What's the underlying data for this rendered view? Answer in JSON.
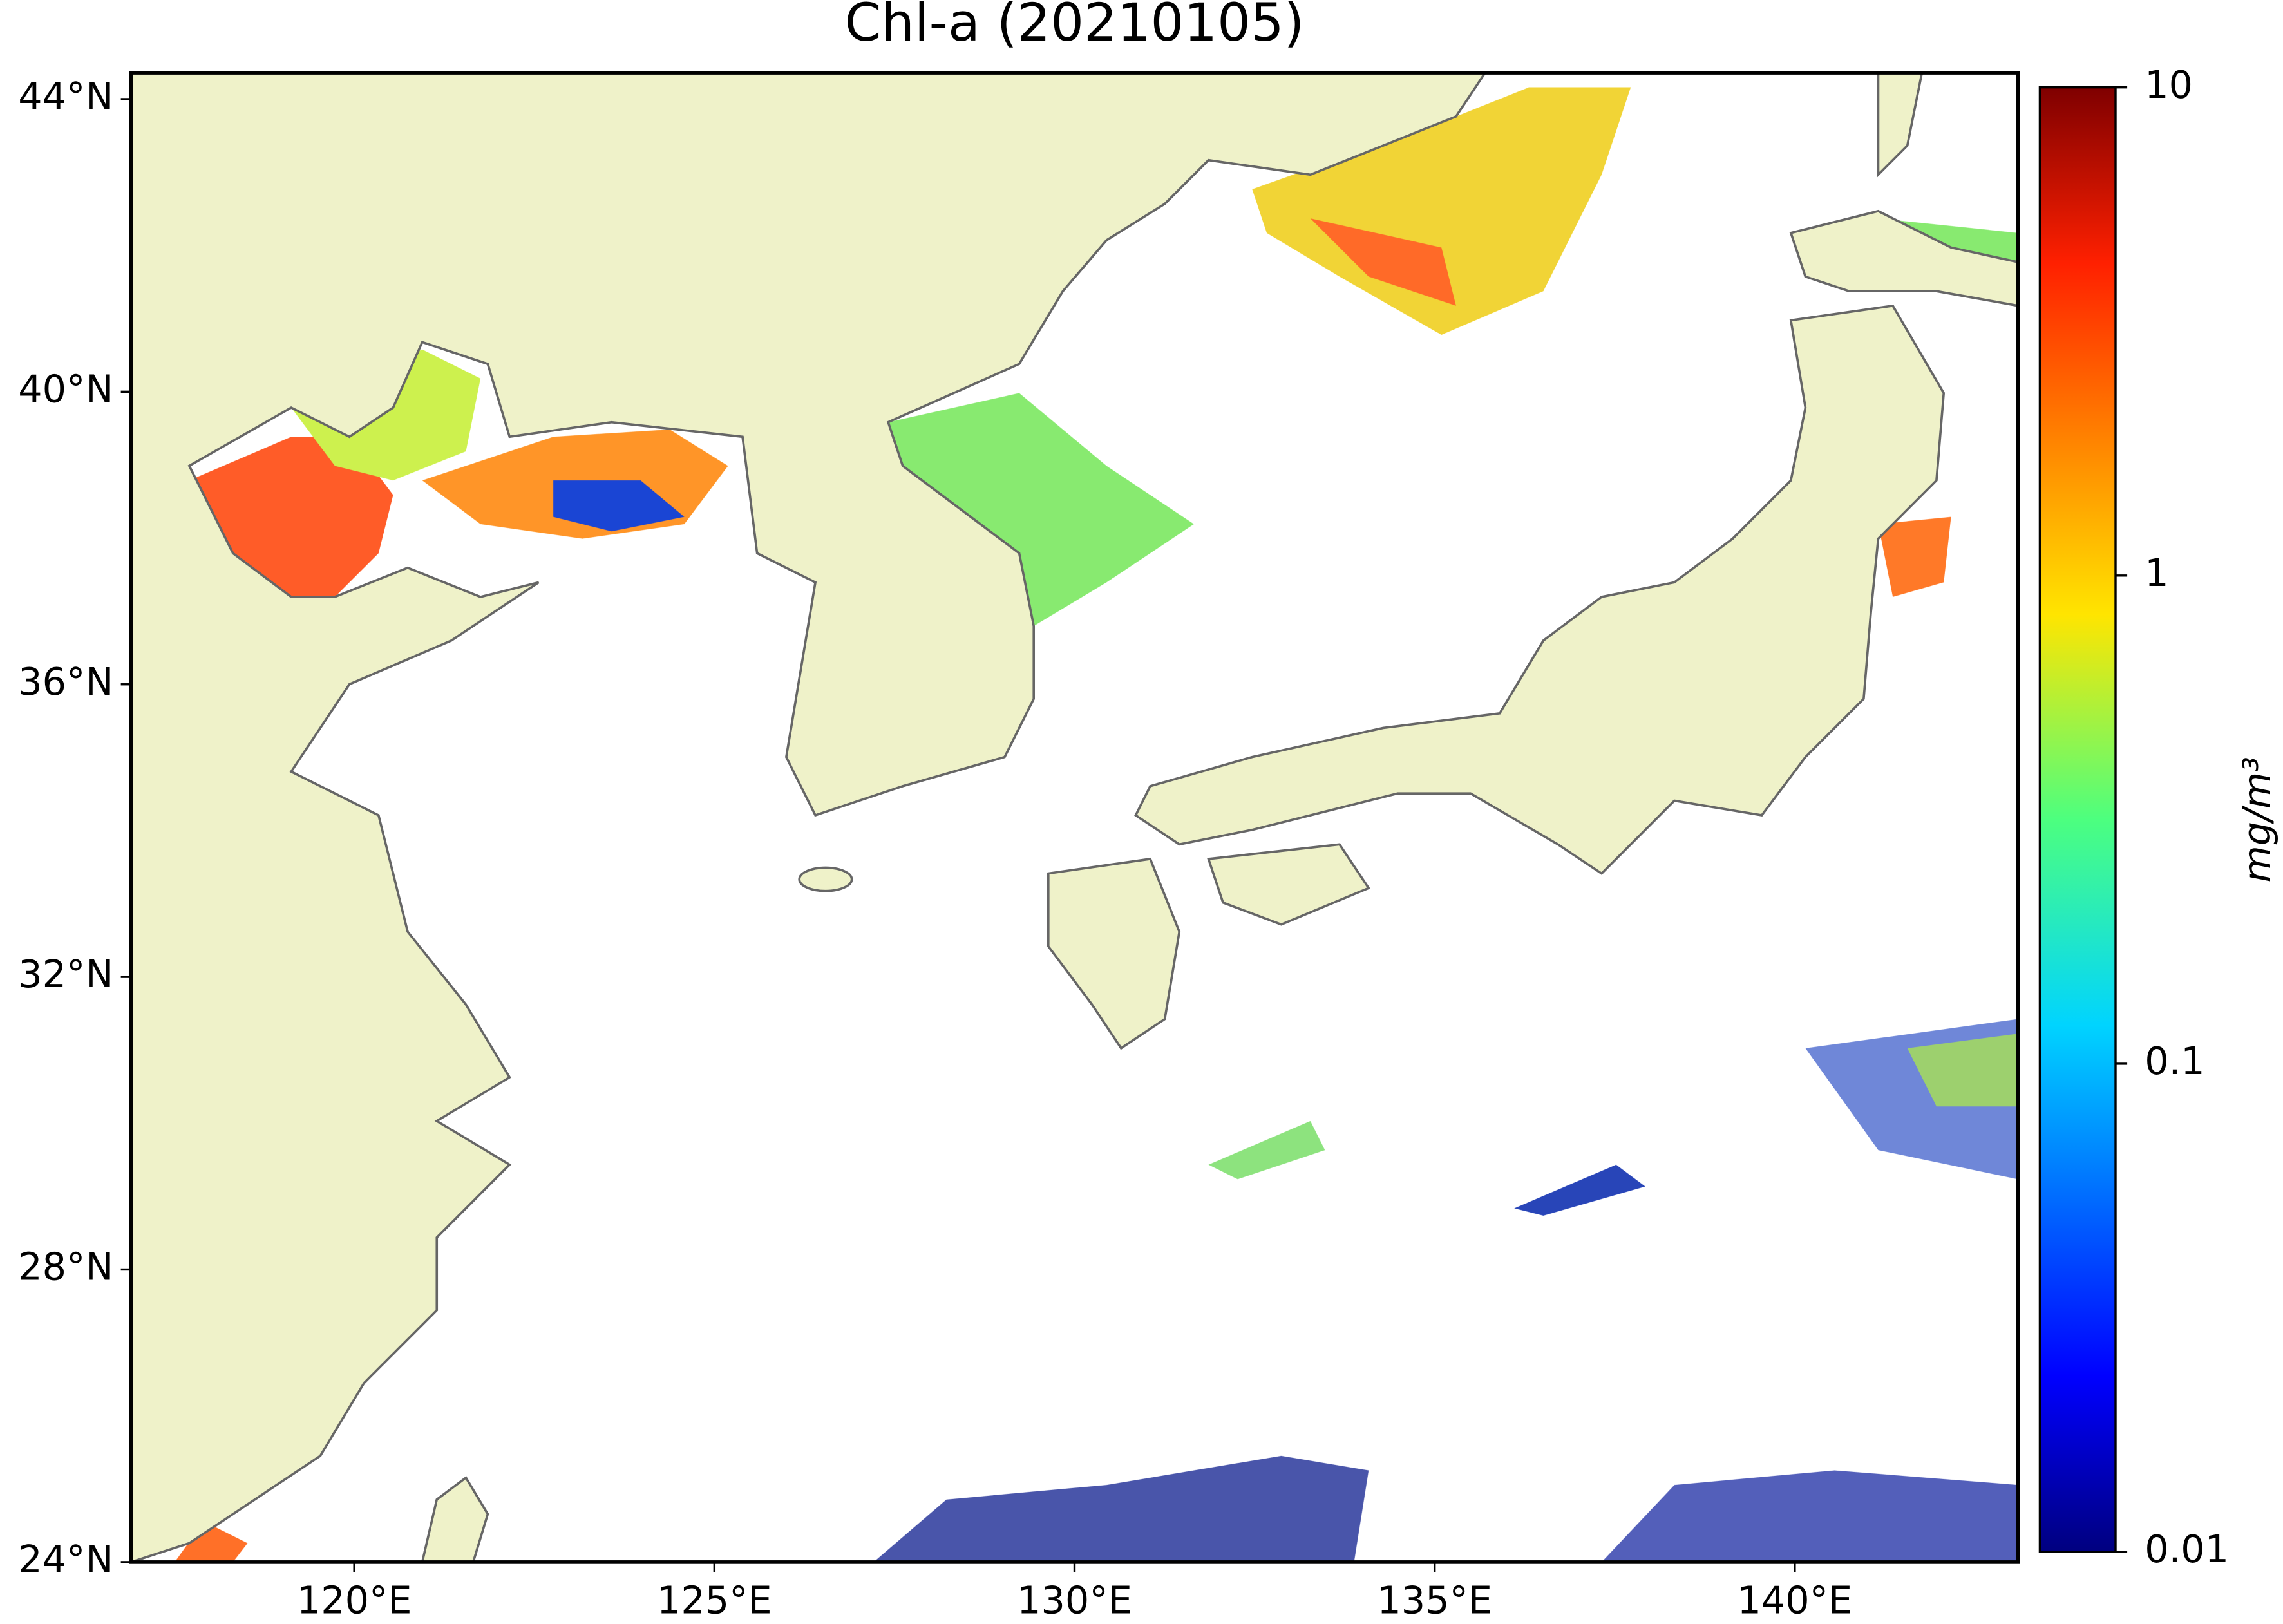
{
  "chart_data": {
    "type": "map",
    "title": "Chl-a (20210105)",
    "xlim": [
      116.9,
      143.1
    ],
    "ylim": [
      24,
      44.36
    ],
    "xticks": [
      {
        "value": 120,
        "label": "120°E"
      },
      {
        "value": 125,
        "label": "125°E"
      },
      {
        "value": 130,
        "label": "130°E"
      },
      {
        "value": 135,
        "label": "135°E"
      },
      {
        "value": 140,
        "label": "140°E"
      }
    ],
    "yticks": [
      {
        "value": 24,
        "label": "24°N"
      },
      {
        "value": 28,
        "label": "28°N"
      },
      {
        "value": 32,
        "label": "32°N"
      },
      {
        "value": 36,
        "label": "36°N"
      },
      {
        "value": 40,
        "label": "40°N"
      },
      {
        "value": 44,
        "label": "44°N"
      }
    ],
    "colorbar": {
      "label": "mg/m³",
      "clim": [
        0.01,
        10
      ],
      "log": true,
      "ticks": [
        0.01,
        0.1,
        1,
        10
      ]
    }
  }
}
